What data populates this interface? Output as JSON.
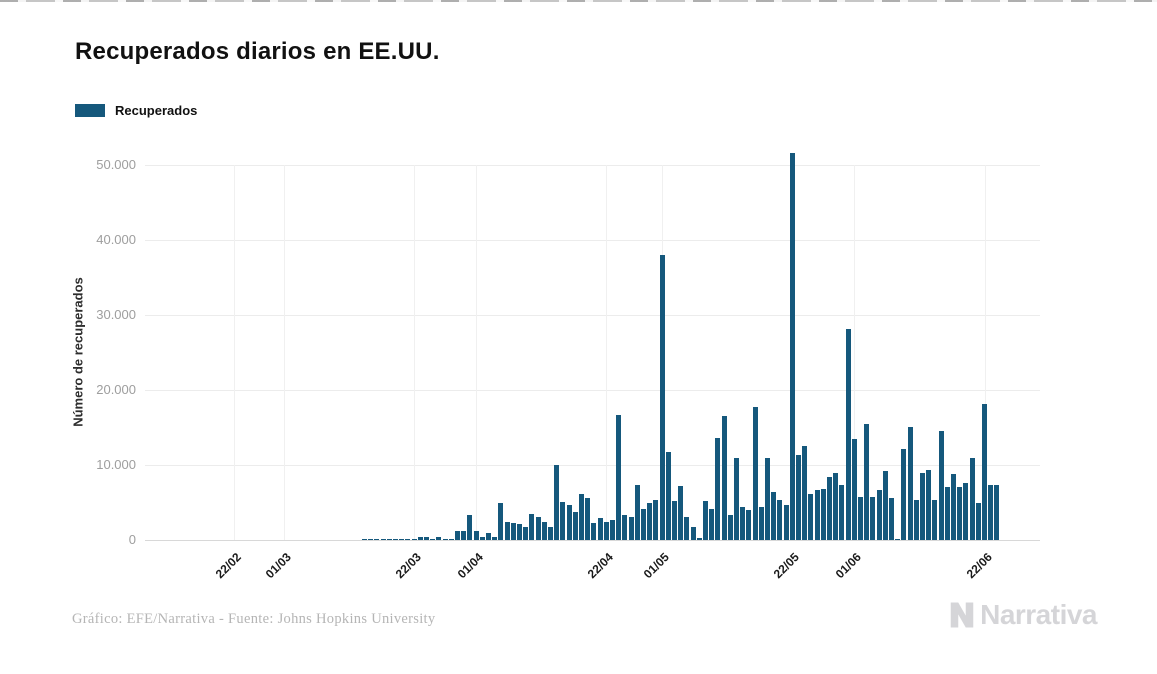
{
  "title": "Recuperados diarios en EE.UU.",
  "legend": {
    "label": "Recuperados"
  },
  "y_axis": {
    "title": "Número de recuperados",
    "tick_labels": [
      "0",
      "10.000",
      "20.000",
      "30.000",
      "40.000",
      "50.000"
    ],
    "tick_values": [
      0,
      10000,
      20000,
      30000,
      40000,
      50000
    ]
  },
  "x_axis": {
    "tick_labels": [
      "22/02",
      "01/03",
      "22/03",
      "01/04",
      "22/04",
      "01/05",
      "22/05",
      "01/06",
      "22/06"
    ]
  },
  "footer": {
    "credit": "Gráfico: EFE/Narrativa - Fuente: Johns Hopkins University"
  },
  "logo": {
    "text": "Narrativa",
    "mark": "narrativa-n-mark"
  },
  "colors": {
    "bar": "#15587C",
    "grid": "#ececec",
    "baseline": "#d8d8d8",
    "y_tick_text": "#9e9e9e",
    "x_tick_text": "#1a1a1a",
    "title_text": "#111111",
    "footer_text": "#b5b5b5",
    "logo_text": "#d5d5d8"
  },
  "chart_data": {
    "type": "bar",
    "title": "Recuperados diarios en EE.UU.",
    "xlabel": "",
    "ylabel": "Número de recuperados",
    "ylim": [
      0,
      50000
    ],
    "grid": "horizontal-and-vertical-ticks",
    "legend_position": "top-left",
    "series_name": "Recuperados",
    "dates": [
      "08/02",
      "09/02",
      "10/02",
      "11/02",
      "12/02",
      "13/02",
      "14/02",
      "15/02",
      "16/02",
      "17/02",
      "18/02",
      "19/02",
      "20/02",
      "21/02",
      "22/02",
      "23/02",
      "24/02",
      "25/02",
      "26/02",
      "27/02",
      "28/02",
      "29/02",
      "01/03",
      "02/03",
      "03/03",
      "04/03",
      "05/03",
      "06/03",
      "07/03",
      "08/03",
      "09/03",
      "10/03",
      "11/03",
      "12/03",
      "13/03",
      "14/03",
      "15/03",
      "16/03",
      "17/03",
      "18/03",
      "19/03",
      "20/03",
      "21/03",
      "22/03",
      "23/03",
      "24/03",
      "25/03",
      "26/03",
      "27/03",
      "28/03",
      "29/03",
      "30/03",
      "31/03",
      "01/04",
      "02/04",
      "03/04",
      "04/04",
      "05/04",
      "06/04",
      "07/04",
      "08/04",
      "09/04",
      "10/04",
      "11/04",
      "12/04",
      "13/04",
      "14/04",
      "15/04",
      "16/04",
      "17/04",
      "18/04",
      "19/04",
      "20/04",
      "21/04",
      "22/04",
      "23/04",
      "24/04",
      "25/04",
      "26/04",
      "27/04",
      "28/04",
      "29/04",
      "30/04",
      "01/05",
      "02/05",
      "03/05",
      "04/05",
      "05/05",
      "06/05",
      "07/05",
      "08/05",
      "09/05",
      "10/05",
      "11/05",
      "12/05",
      "13/05",
      "14/05",
      "15/05",
      "16/05",
      "17/05",
      "18/05",
      "19/05",
      "20/05",
      "21/05",
      "22/05",
      "23/05",
      "24/05",
      "25/05",
      "26/05",
      "27/05",
      "28/05",
      "29/05",
      "30/05",
      "31/05",
      "01/06",
      "02/06",
      "03/06",
      "04/06",
      "05/06",
      "06/06",
      "07/06",
      "08/06",
      "09/06",
      "10/06",
      "11/06",
      "12/06",
      "13/06",
      "14/06",
      "15/06",
      "16/06",
      "17/06",
      "18/06",
      "19/06",
      "20/06",
      "21/06",
      "22/06",
      "23/06",
      "24/06"
    ],
    "values": [
      0,
      0,
      0,
      0,
      0,
      0,
      0,
      0,
      0,
      0,
      0,
      0,
      0,
      0,
      0,
      0,
      0,
      0,
      0,
      0,
      0,
      0,
      0,
      0,
      0,
      0,
      0,
      0,
      0,
      0,
      0,
      0,
      0,
      0,
      0,
      100,
      100,
      100,
      150,
      100,
      100,
      150,
      100,
      150,
      350,
      350,
      150,
      400,
      150,
      200,
      1250,
      1250,
      3300,
      1250,
      400,
      900,
      450,
      5000,
      2450,
      2300,
      2100,
      1800,
      3500,
      3100,
      2450,
      1800,
      10000,
      5100,
      4650,
      3800,
      6100,
      5600,
      2300,
      2900,
      2450,
      2700,
      16700,
      3400,
      3100,
      7300,
      4200,
      4900,
      5300,
      38000,
      11800,
      5200,
      7250,
      3100,
      1700,
      300,
      5250,
      4200,
      13550,
      16600,
      3300,
      10900,
      4450,
      4000,
      17800,
      4450,
      11000,
      6450,
      5350,
      4650,
      51600,
      11300,
      12500,
      6100,
      6650,
      6800,
      8350,
      9000,
      7300,
      28200,
      13500,
      5800,
      15450,
      5800,
      6700,
      9200,
      5550,
      100,
      12200,
      15100,
      5300,
      9000,
      9400,
      5300,
      14500,
      7100,
      8800,
      7100,
      7650,
      10900,
      4900,
      18100,
      7400,
      7400
    ]
  }
}
